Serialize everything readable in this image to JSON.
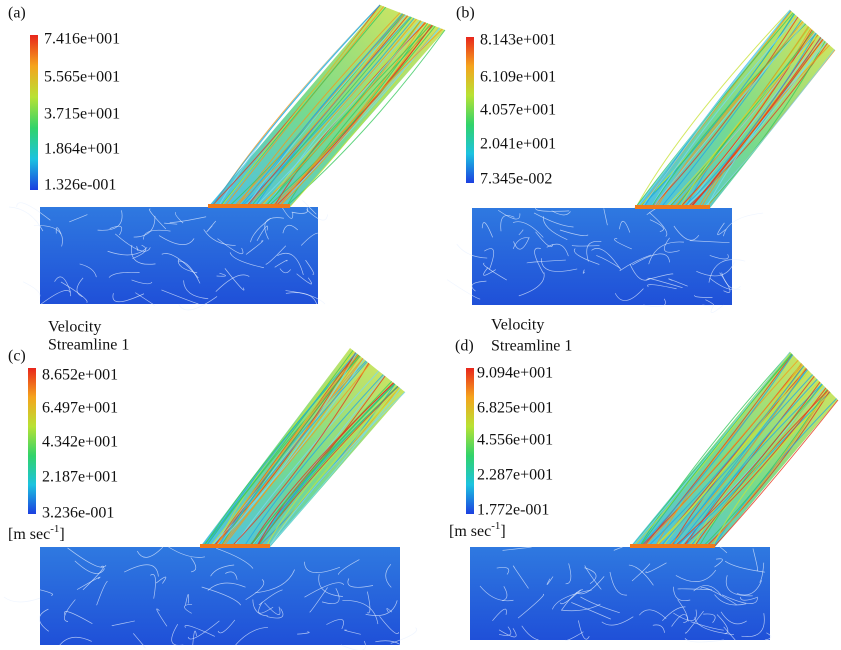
{
  "panels": [
    {
      "label": "(a)",
      "colorbar_labels": [
        "7.416e+001",
        "5.565e+001",
        "3.715e+001",
        "1.864e+001",
        "1.326e-001"
      ]
    },
    {
      "label": "(b)",
      "colorbar_labels": [
        "8.143e+001",
        "6.109e+001",
        "4.057e+001",
        "2.041e+001",
        "7.345e-002"
      ]
    },
    {
      "label": "(c)",
      "title": "Velocity",
      "subtitle": "Streamline 1",
      "unit": "[m sec",
      "unit_exponent": "-1",
      "unit_close": "]",
      "colorbar_labels": [
        "8.652e+001",
        "6.497e+001",
        "4.342e+001",
        "2.187e+001",
        "3.236e-001"
      ]
    },
    {
      "label": "(d)",
      "title": "Velocity",
      "subtitle": "Streamline 1",
      "unit": "[m sec",
      "unit_exponent": "-1",
      "unit_close": "]",
      "colorbar_labels": [
        "9.094e+001",
        "6.825e+001",
        "4.556e+001",
        "2.287e+001",
        "1.772e-001"
      ]
    }
  ]
}
